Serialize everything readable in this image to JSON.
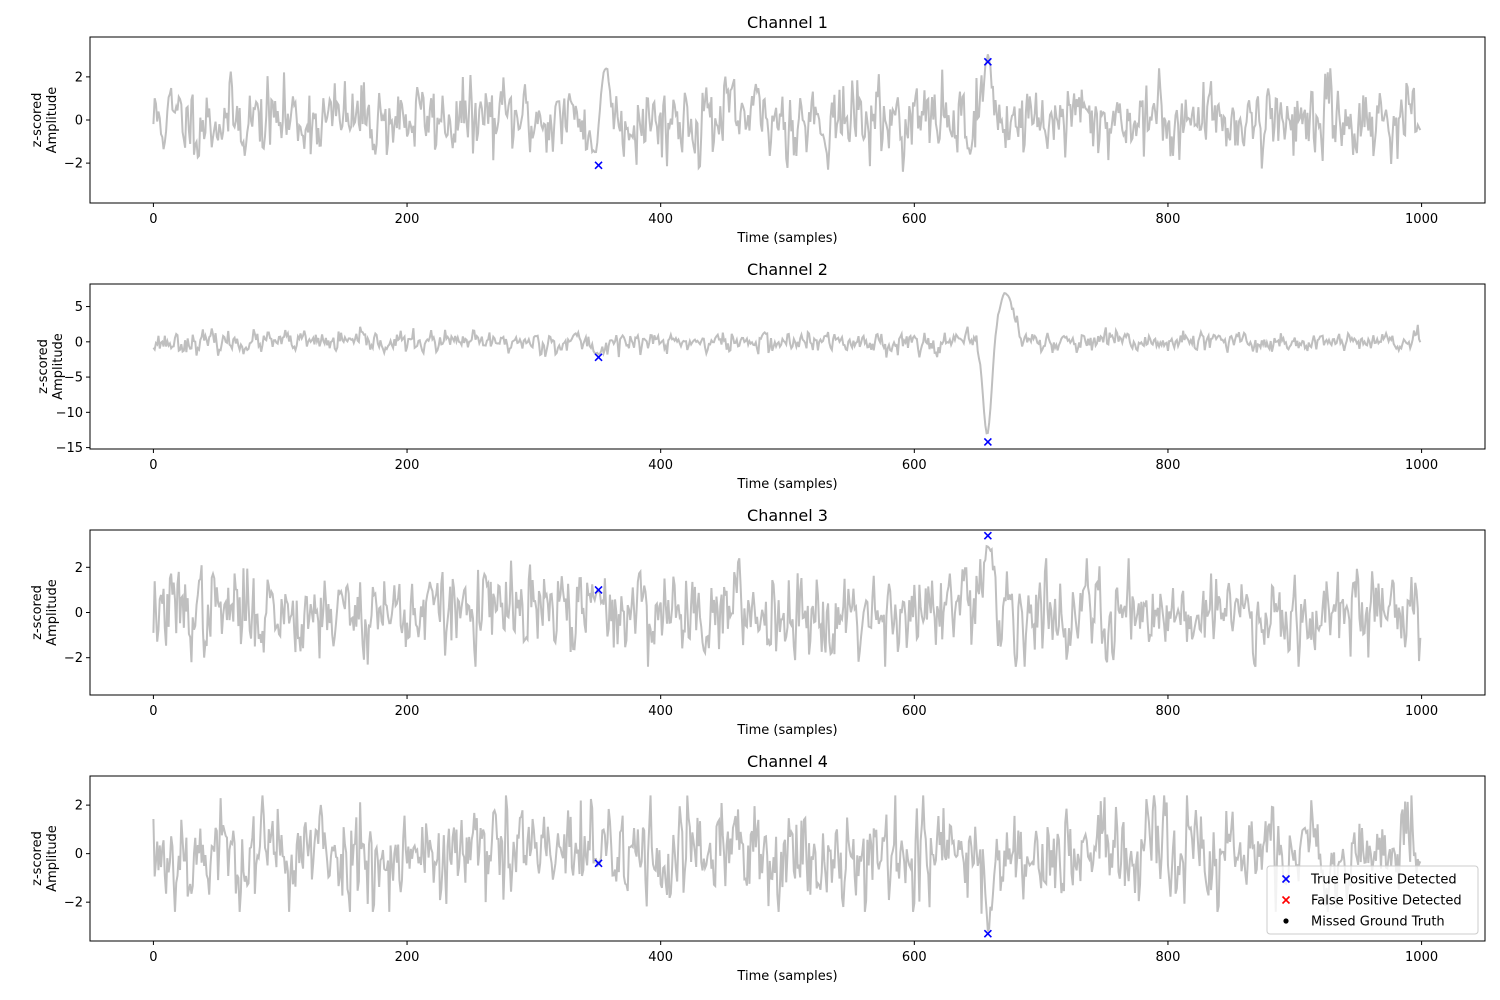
{
  "chart_data": [
    {
      "type": "line",
      "title": "Channel 1",
      "xlabel": "Time (samples)",
      "ylabel": [
        "z-scored",
        "Amplitude"
      ],
      "xlim": [
        -50,
        1050
      ],
      "ylim": [
        -3.85,
        3.85
      ],
      "xticks": [
        0,
        200,
        400,
        600,
        800,
        1000
      ],
      "yticks": [
        -2,
        0,
        2
      ],
      "signal": {
        "name": "",
        "color": "#bfbfbf",
        "n": 1000,
        "std": 0.85,
        "seed": 11,
        "events": [
          {
            "x": 351,
            "amp": -2.9,
            "width": 6
          },
          {
            "x": 356,
            "amp": 2.6,
            "width": 6
          },
          {
            "x": 658,
            "amp": 3.0,
            "width": 4
          }
        ]
      },
      "true_positive_points": [
        {
          "x": 351,
          "y": -2.1
        },
        {
          "x": 658,
          "y": 2.7
        }
      ],
      "false_positive_points": [],
      "missed_points": []
    },
    {
      "type": "line",
      "title": "Channel 2",
      "xlabel": "Time (samples)",
      "ylabel": [
        "z-scored",
        "Amplitude"
      ],
      "xlim": [
        -50,
        1050
      ],
      "ylim": [
        -15.2,
        8.2
      ],
      "xticks": [
        0,
        200,
        400,
        600,
        800,
        1000
      ],
      "yticks": [
        -15,
        -10,
        -5,
        0,
        5
      ],
      "signal": {
        "name": "",
        "color": "#bfbfbf",
        "n": 1000,
        "std": 0.75,
        "seed": 23,
        "events": [
          {
            "x": 351,
            "amp": -1.8,
            "width": 4
          },
          {
            "x": 658,
            "amp": -14.5,
            "width": 5
          },
          {
            "x": 672,
            "amp": 6.8,
            "width": 9
          }
        ]
      },
      "true_positive_points": [
        {
          "x": 351,
          "y": -2.2
        },
        {
          "x": 658,
          "y": -14.2
        }
      ],
      "false_positive_points": [],
      "missed_points": []
    },
    {
      "type": "line",
      "title": "Channel 3",
      "xlabel": "Time (samples)",
      "ylabel": [
        "z-scored",
        "Amplitude"
      ],
      "xlim": [
        -50,
        1050
      ],
      "ylim": [
        -3.65,
        3.65
      ],
      "xticks": [
        0,
        200,
        400,
        600,
        800,
        1000
      ],
      "yticks": [
        -2,
        0,
        2
      ],
      "signal": {
        "name": "",
        "color": "#bfbfbf",
        "n": 1000,
        "std": 0.95,
        "seed": 37,
        "events": [
          {
            "x": 351,
            "amp": 0.9,
            "width": 3
          },
          {
            "x": 658,
            "amp": 3.2,
            "width": 4
          }
        ]
      },
      "true_positive_points": [
        {
          "x": 351,
          "y": 1.0
        },
        {
          "x": 658,
          "y": 3.4
        }
      ],
      "false_positive_points": [],
      "missed_points": []
    },
    {
      "type": "line",
      "title": "Channel 4",
      "xlabel": "Time (samples)",
      "ylabel": [
        "z-scored",
        "Amplitude"
      ],
      "xlim": [
        -50,
        1050
      ],
      "ylim": [
        -3.6,
        3.2
      ],
      "xticks": [
        0,
        200,
        400,
        600,
        800,
        1000
      ],
      "yticks": [
        -2,
        0,
        2
      ],
      "signal": {
        "name": "",
        "color": "#bfbfbf",
        "n": 1000,
        "std": 1.0,
        "seed": 53,
        "events": [
          {
            "x": 351,
            "amp": -0.5,
            "width": 3
          },
          {
            "x": 658,
            "amp": -3.3,
            "width": 3
          }
        ]
      },
      "true_positive_points": [
        {
          "x": 351,
          "y": -0.4
        },
        {
          "x": 658,
          "y": -3.3
        }
      ],
      "false_positive_points": [],
      "missed_points": [],
      "legend": {
        "placement": "bottom-right",
        "entries": [
          {
            "label": "True Positive Detected",
            "marker": "x",
            "color": "#0000ff"
          },
          {
            "label": "False Positive Detected",
            "marker": "x",
            "color": "#ff0000"
          },
          {
            "label": "Missed Ground Truth",
            "marker": "dot",
            "color": "#000000"
          }
        ]
      }
    }
  ]
}
